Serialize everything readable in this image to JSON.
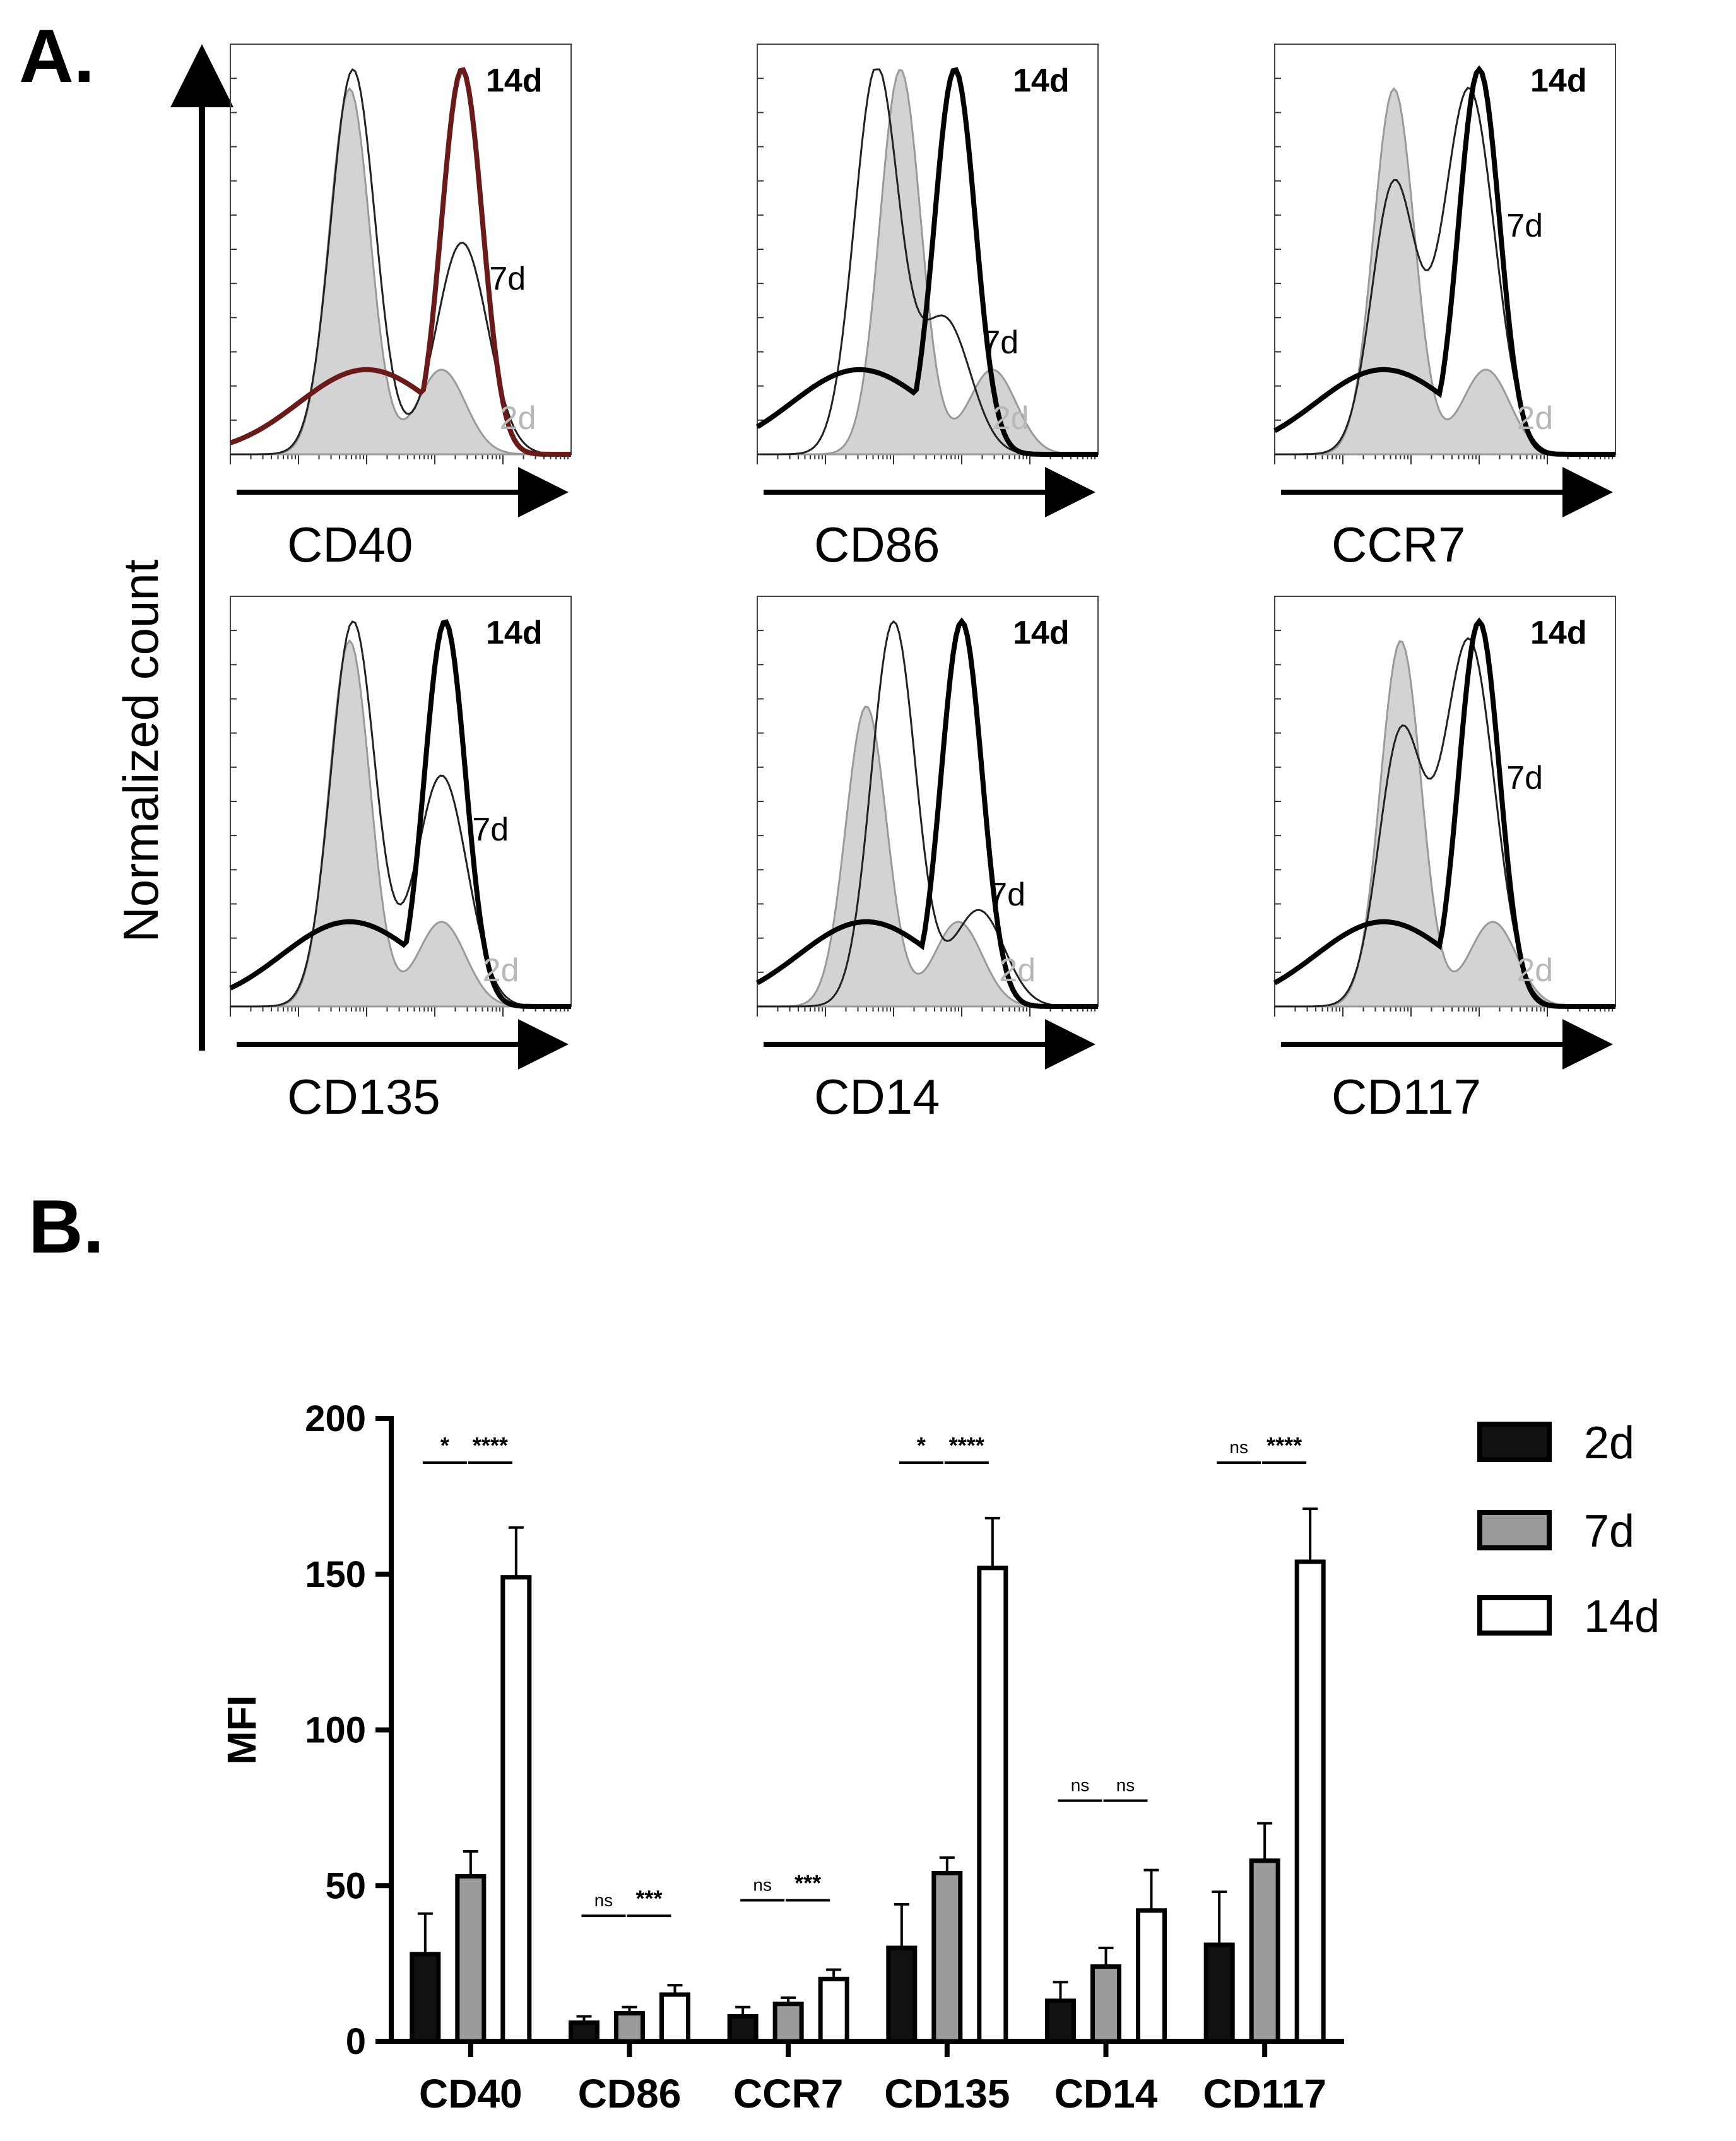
{
  "panel_a": {
    "label": "A.",
    "ylabel": "Normalized count",
    "histograms": [
      {
        "marker": "CD40",
        "labels": [
          "14d",
          "7d",
          "2d"
        ],
        "peaks": {
          "2d": [
            0.35,
            0.95
          ],
          "7d": [
            0.36,
            1.0,
            0.68,
            0.55
          ],
          "14d": [
            0.68,
            1.0
          ]
        },
        "dark_red": true
      },
      {
        "marker": "CD86",
        "labels": [
          "14d",
          "7d",
          "2d"
        ],
        "peaks": {
          "2d": [
            0.42,
            1.0
          ],
          "7d": [
            0.35,
            1.0,
            0.55,
            0.35
          ],
          "14d": [
            0.58,
            1.0
          ]
        },
        "dark_red": false
      },
      {
        "marker": "CCR7",
        "labels": [
          "14d",
          "7d",
          "2d"
        ],
        "peaks": {
          "2d": [
            0.35,
            0.95
          ],
          "7d": [
            0.35,
            0.7,
            0.57,
            0.95
          ],
          "14d": [
            0.6,
            1.0
          ]
        },
        "dark_red": false
      },
      {
        "marker": "CD135",
        "labels": [
          "14d",
          "7d",
          "2d"
        ],
        "peaks": {
          "2d": [
            0.35,
            0.95
          ],
          "7d": [
            0.36,
            1.0,
            0.62,
            0.6
          ],
          "14d": [
            0.63,
            1.0
          ]
        },
        "dark_red": false
      },
      {
        "marker": "CD14",
        "labels": [
          "14d",
          "7d",
          "2d"
        ],
        "peaks": {
          "2d": [
            0.32,
            0.78
          ],
          "7d": [
            0.4,
            1.0,
            0.65,
            0.25
          ],
          "14d": [
            0.6,
            1.0
          ]
        },
        "dark_red": false
      },
      {
        "marker": "CD117",
        "labels": [
          "14d",
          "7d",
          "2d"
        ],
        "peaks": {
          "2d": [
            0.37,
            0.95
          ],
          "7d": [
            0.37,
            0.7,
            0.57,
            0.95
          ],
          "14d": [
            0.6,
            1.0
          ]
        },
        "dark_red": false
      }
    ]
  },
  "panel_b": {
    "label": "B."
  },
  "chart_data": {
    "type": "bar",
    "title": "",
    "xlabel": "",
    "ylabel": "MFI",
    "ylim": [
      0,
      200
    ],
    "yticks": [
      "0",
      "50",
      "100",
      "150",
      "200"
    ],
    "grid": false,
    "legend_position": "top-right",
    "categories": [
      "CD40",
      "CD86",
      "CCR7",
      "CD135",
      "CD14",
      "CD117"
    ],
    "series": [
      {
        "name": "2d",
        "color": "#111111",
        "values": [
          28,
          6,
          8,
          30,
          13,
          31
        ],
        "errors": [
          13,
          2,
          3,
          14,
          6,
          17
        ]
      },
      {
        "name": "7d",
        "color": "#9a9a9a",
        "values": [
          53,
          9,
          12,
          54,
          24,
          58
        ],
        "errors": [
          8,
          2,
          2,
          5,
          6,
          12
        ]
      },
      {
        "name": "14d",
        "color": "#ffffff",
        "values": [
          149,
          15,
          20,
          152,
          42,
          154
        ],
        "errors": [
          16,
          3,
          3,
          16,
          13,
          17
        ]
      }
    ],
    "significance": [
      [
        "*",
        "****"
      ],
      [
        "ns",
        "***"
      ],
      [
        "ns",
        "***"
      ],
      [
        "*",
        "****"
      ],
      [
        "ns",
        "ns"
      ],
      [
        "ns",
        "****"
      ]
    ]
  }
}
